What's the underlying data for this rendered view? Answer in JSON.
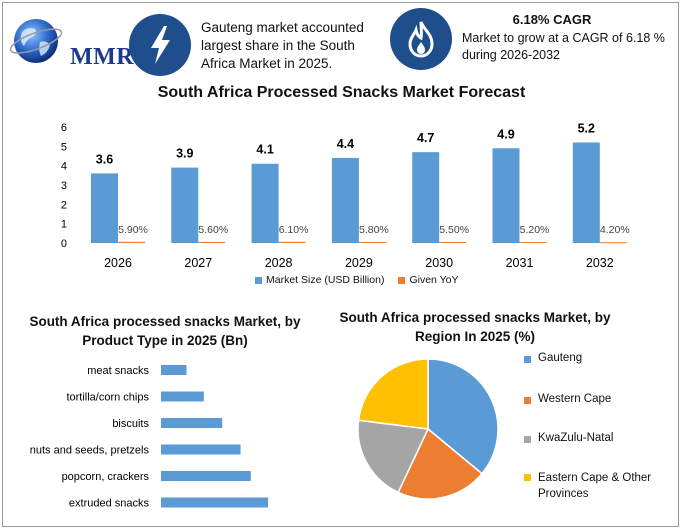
{
  "header": {
    "brand": "MMR",
    "info1_text": "Gauteng market accounted largest share in the South Africa Market in 2025.",
    "cagr_title": "6.18% CAGR",
    "cagr_text": "Market to grow at a CAGR of 6.18 % during 2026-2032",
    "icons": [
      "globe-icon",
      "lightning-icon",
      "flame-icon"
    ]
  },
  "colors": {
    "bar_blue": "#5b9bd5",
    "orange": "#ed7d31",
    "gray": "#a5a5a5",
    "yellow": "#ffc000",
    "icon_circle": "#1f4e8c"
  },
  "chart_data": [
    {
      "type": "bar",
      "title": "South Africa Processed Snacks Market Forecast",
      "categories": [
        "2026",
        "2027",
        "2028",
        "2029",
        "2030",
        "2031",
        "2032"
      ],
      "series": [
        {
          "name": "Market Size (USD Billion)",
          "values": [
            3.6,
            3.9,
            4.1,
            4.4,
            4.7,
            4.9,
            5.2
          ],
          "labels": [
            "3.6",
            "3.9",
            "4.1",
            "4.4",
            "4.7",
            "4.9",
            "5.2"
          ]
        },
        {
          "name": "Given YoY",
          "values": [
            0.059,
            0.056,
            0.061,
            0.058,
            0.055,
            0.052,
            0.042
          ],
          "labels": [
            "5.90%",
            "5.60%",
            "6.10%",
            "5.80%",
            "5.50%",
            "5.20%",
            "4.20%"
          ]
        }
      ],
      "yticks": [
        0,
        1,
        2,
        3,
        4,
        5,
        6
      ],
      "ylim": [
        0,
        6
      ],
      "legend": "bottom",
      "grid": false
    },
    {
      "type": "bar",
      "orientation": "horizontal",
      "title": "South Africa processed snacks Market, by Product Type in 2025 (Bn)",
      "categories": [
        "meat snacks",
        "tortilla/corn chips",
        "biscuits",
        "nuts and seeds, pretzels",
        "popcorn, crackers",
        "extruded snacks"
      ],
      "values": [
        0.25,
        0.42,
        0.6,
        0.78,
        0.88,
        1.05
      ],
      "grid": false
    },
    {
      "type": "pie",
      "title": "South Africa processed snacks Market, by Region In 2025 (%)",
      "labels": [
        "Gauteng",
        "Western Cape",
        "KwaZulu-Natal",
        "Eastern Cape & Other Provinces"
      ],
      "values": [
        36,
        21,
        20,
        23
      ],
      "legend": "right"
    }
  ]
}
